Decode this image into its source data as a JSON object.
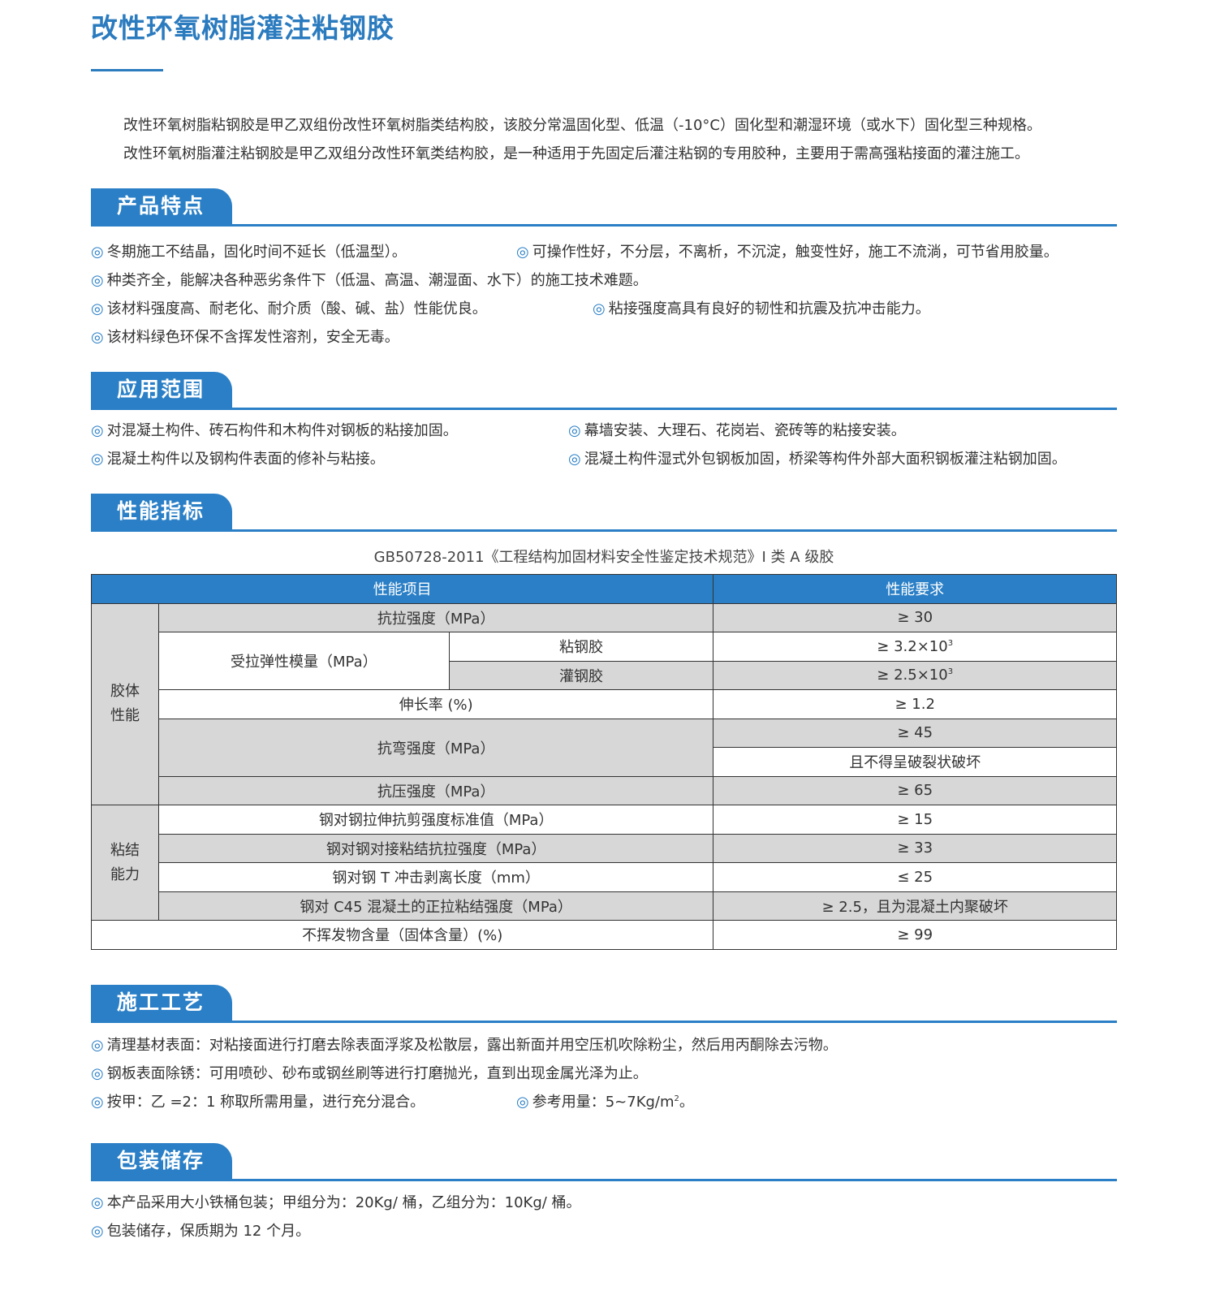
{
  "title": "改性环氧树脂灌注粘钢胶",
  "intro": [
    "改性环氧树脂粘钢胶是甲乙双组份改性环氧树脂类结构胶，该胶分常温固化型、低温（-10°C）固化型和潮湿环境（或水下）固化型三种规格。",
    "改性环氧树脂灌注粘钢胶是甲乙双组分改性环氧类结构胶，是一种适用于先固定后灌注粘钢的专用胶种，主要用于需高强粘接面的灌注施工。"
  ],
  "bullet": "◎",
  "colors": {
    "accent": "#2a7fc6",
    "row_gray": "#d7d7d7"
  },
  "sections": {
    "features": {
      "title": "产品特点",
      "items": [
        "冬期施工不结晶，固化时间不延长（低温型）。",
        "可操作性好，不分层，不离析，不沉淀，触变性好，施工不流淌，可节省用胶量。",
        "种类齐全，能解决各种恶劣条件下（低温、高温、潮湿面、水下）的施工技术难题。",
        "该材料强度高、耐老化、耐介质（酸、碱、盐）性能优良。",
        "粘接强度高具有良好的韧性和抗震及抗冲击能力。",
        "该材料绿色环保不含挥发性溶剂，安全无毒。"
      ]
    },
    "scope": {
      "title": "应用范围",
      "items": [
        "对混凝土构件、砖石构件和木构件对钢板的粘接加固。",
        "幕墙安装、大理石、花岗岩、瓷砖等的粘接安装。",
        "混凝土构件以及钢构件表面的修补与粘接。",
        "混凝土构件湿式外包钢板加固，桥梁等构件外部大面积钢板灌注粘钢加固。"
      ]
    },
    "performance": {
      "title": "性能指标",
      "caption": "GB50728-2011《工程结构加固材料安全性鉴定技术规范》I 类 A 级胶",
      "header": [
        "性能项目",
        "性能要求"
      ],
      "group1": "胶体\n性能",
      "group2": "粘结\n能力",
      "rows": {
        "tensile": [
          "抗拉强度（MPa）",
          "≥ 30"
        ],
        "modulus": "受拉弹性模量（MPa）",
        "bond_glue": [
          "粘钢胶",
          "≥ 3.2×10",
          "3"
        ],
        "fill_glue": [
          "灌钢胶",
          "≥ 2.5×10",
          "3"
        ],
        "elong": [
          "伸长率 (%)",
          "≥ 1.2"
        ],
        "bend": [
          "抗弯强度（MPa）",
          "≥ 45",
          "且不得呈破裂状破坏"
        ],
        "compress": [
          "抗压强度（MPa）",
          "≥ 65"
        ],
        "shear": [
          "钢对钢拉伸抗剪强度标准值（MPa）",
          "≥ 15"
        ],
        "butt": [
          "钢对钢对接粘结抗拉强度（MPa）",
          "≥ 33"
        ],
        "peel": [
          "钢对钢 T 冲击剥离长度（mm）",
          "≤ 25"
        ],
        "c45": [
          "钢对 C45 混凝土的正拉粘结强度（MPa）",
          "≥ 2.5，且为混凝土内聚破坏"
        ],
        "solid": [
          "不挥发物含量（固体含量）(%)",
          "≥ 99"
        ]
      }
    },
    "process": {
      "title": "施工工艺",
      "items": [
        "清理基材表面：对粘接面进行打磨去除表面浮浆及松散层，露出新面并用空压机吹除粉尘，然后用丙酮除去污物。",
        "钢板表面除锈：可用喷砂、砂布或钢丝刷等进行打磨抛光，直到出现金属光泽为止。",
        "按甲：乙 =2：1 称取所需用量，进行充分混合。"
      ],
      "usage": "参考用量：5~7Kg/m",
      "usage_sup": "2",
      "usage_end": "。"
    },
    "storage": {
      "title": "包装储存",
      "items": [
        "本产品采用大小铁桶包装；甲组分为：20Kg/ 桶，乙组分为：10Kg/ 桶。",
        "包装储存，保质期为 12 个月。"
      ]
    }
  }
}
